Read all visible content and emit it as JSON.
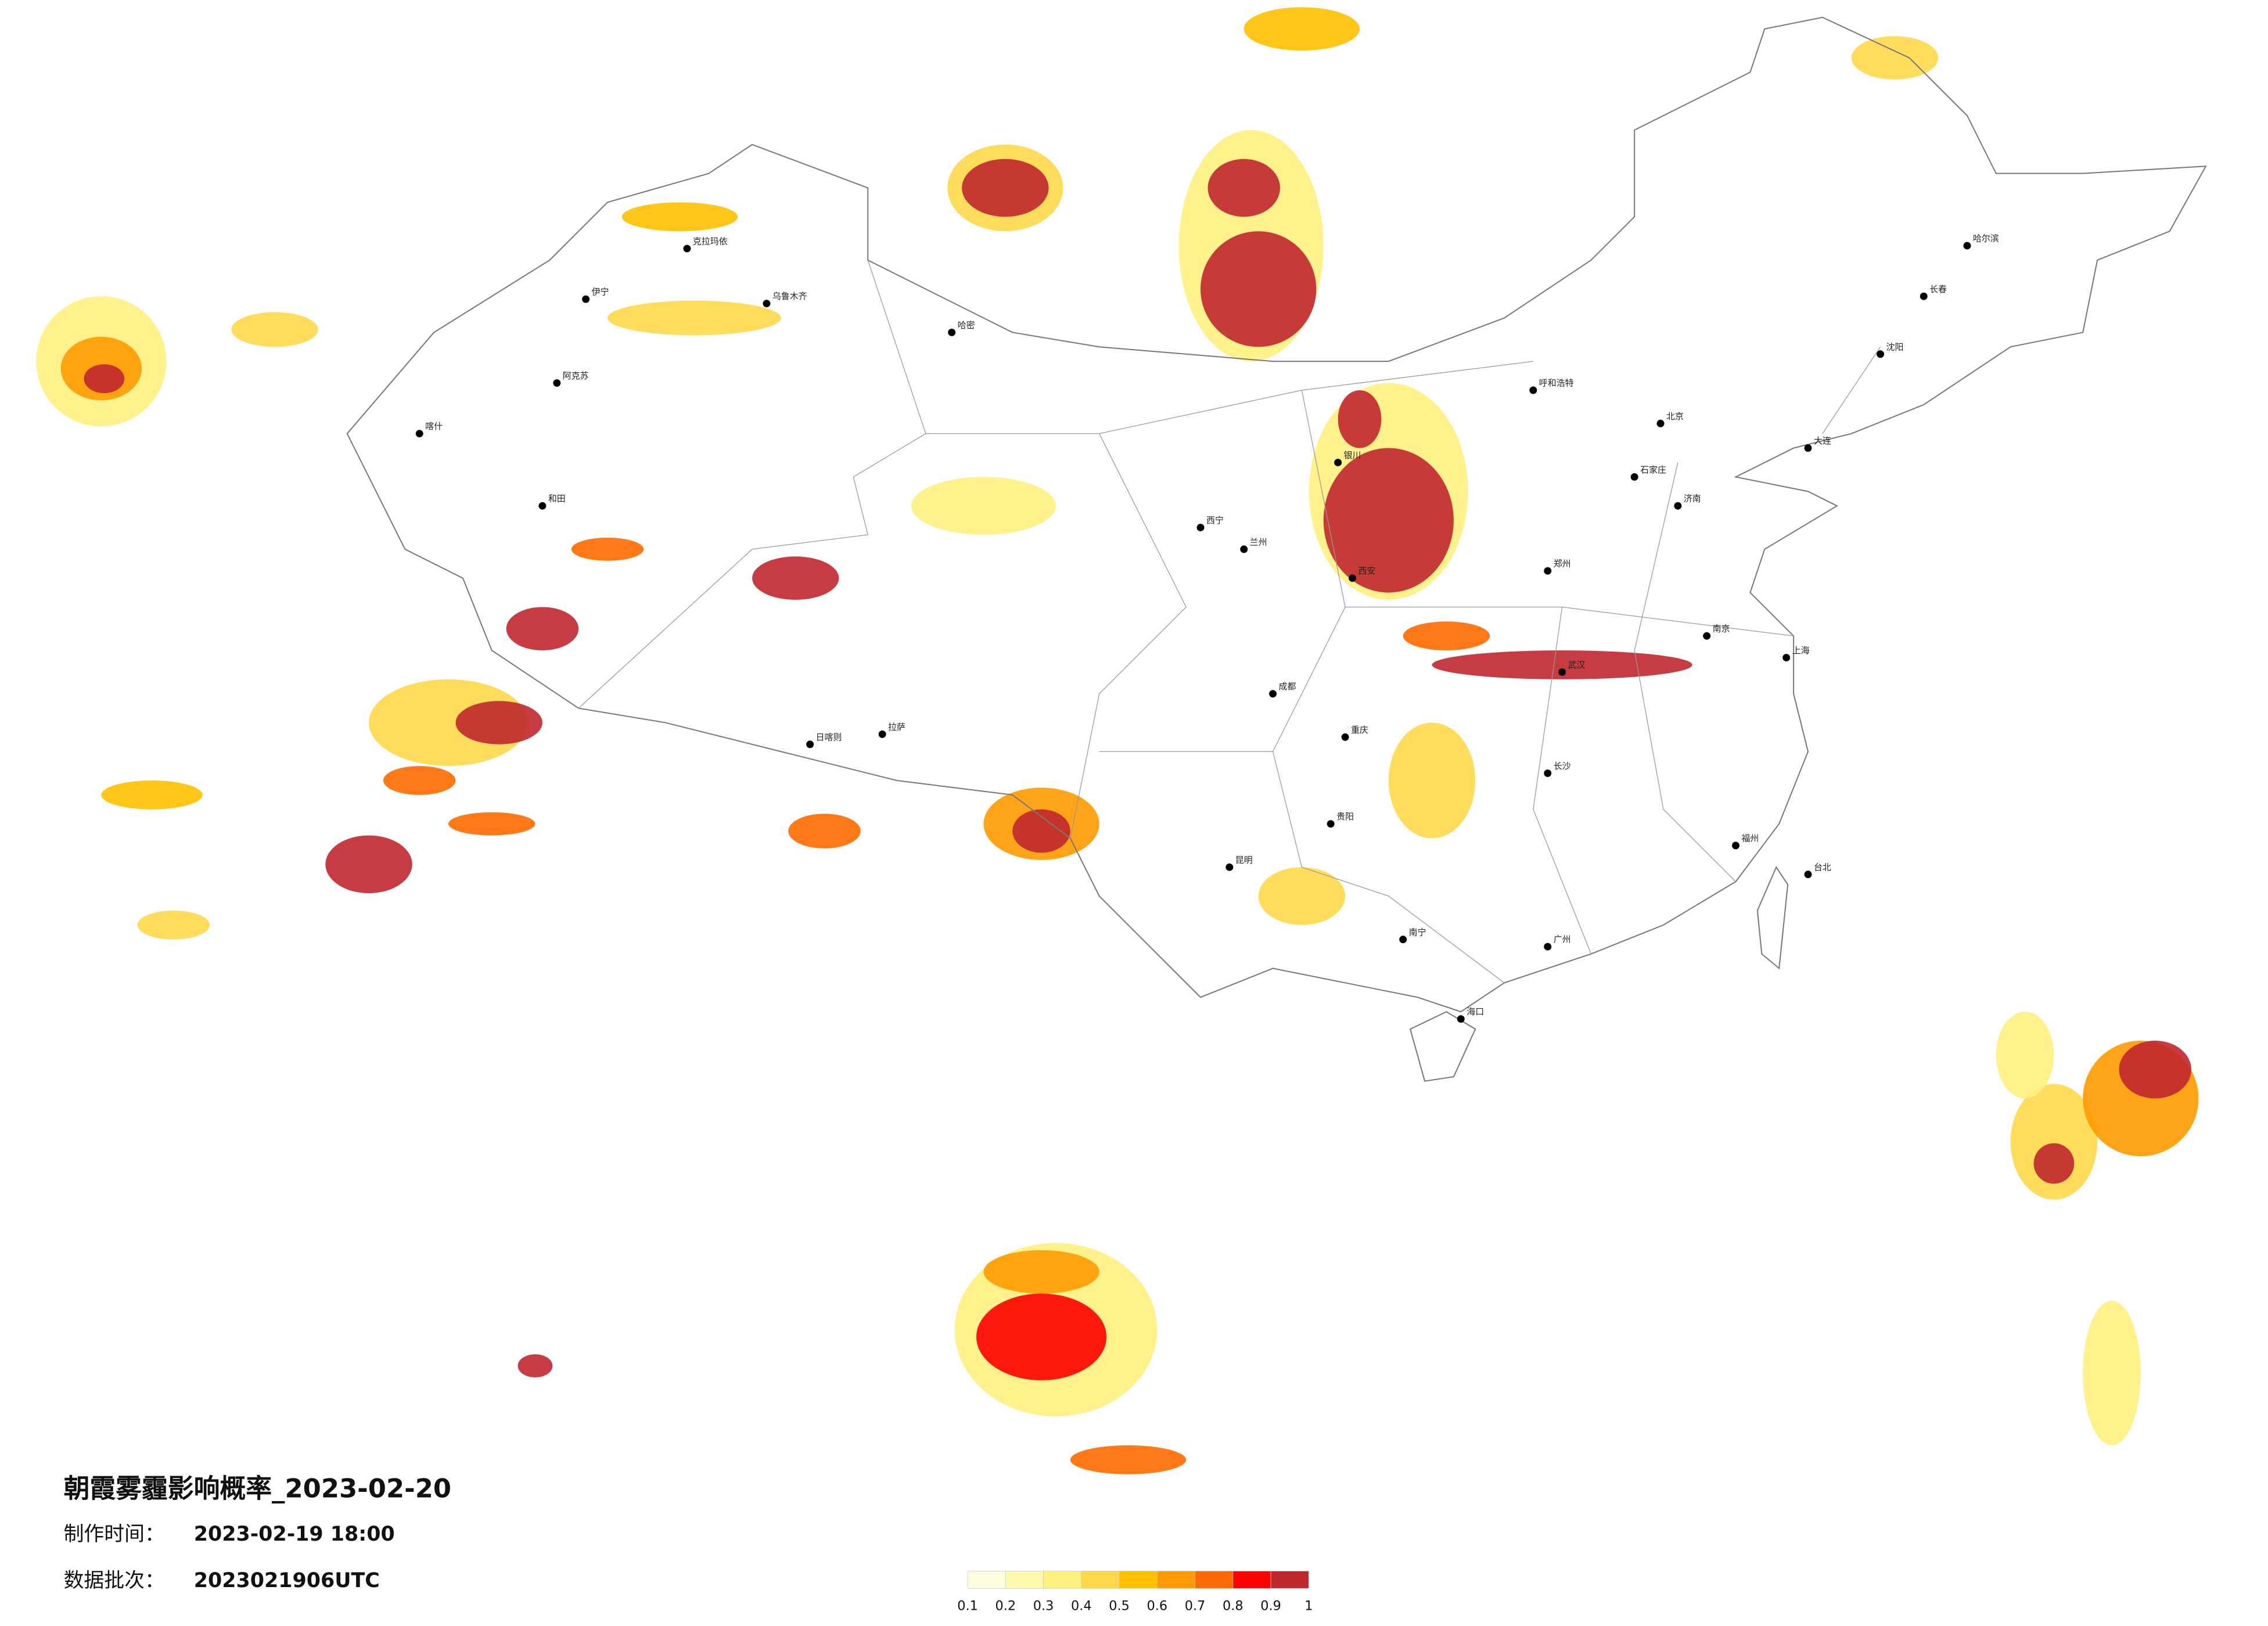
{
  "title": "朝霞雾霾影响概率_2023-02-20",
  "made_label": "制作时间：",
  "made_time": "2023-02-19 18:00",
  "batch_label": "数据批次：",
  "batch": "2023021906UTC",
  "legend": {
    "ticks": [
      0.1,
      0.2,
      0.3,
      0.4,
      0.5,
      0.6,
      0.7,
      0.8,
      0.9,
      1
    ],
    "colors": [
      "#fffde0",
      "#fff9b0",
      "#fff080",
      "#ffd84a",
      "#ffc000",
      "#ff9a00",
      "#ff6a00",
      "#ff0000",
      "#c0272d"
    ]
  },
  "cities": [
    "伊宁",
    "克拉玛依",
    "乌鲁木齐",
    "哈密",
    "阿克苏",
    "喀什",
    "和田",
    "拉萨",
    "日喀则",
    "西宁",
    "兰州",
    "银川",
    "呼和浩特",
    "北京",
    "石家庄",
    "济南",
    "西安",
    "郑州",
    "武汉",
    "南京",
    "上海",
    "成都",
    "重庆",
    "长沙",
    "贵阳",
    "昆明",
    "南宁",
    "广州",
    "福州",
    "海口",
    "哈尔滨",
    "长春",
    "沈阳",
    "大连",
    "台北"
  ]
}
